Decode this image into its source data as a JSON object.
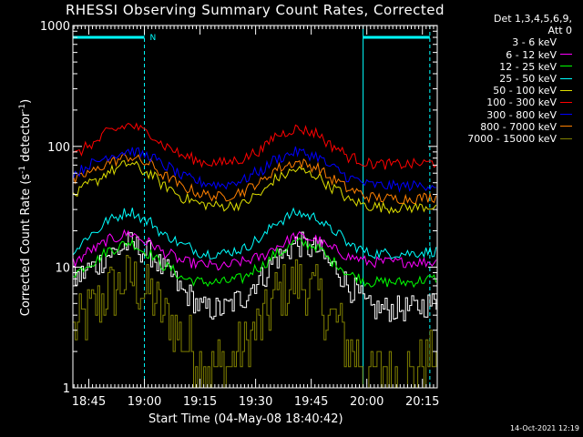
{
  "title": "RHESSI Observing Summary Count Rates, Corrected",
  "timestamp": "14-Oct-2021 12:19",
  "legend_header": [
    "Det 1,3,4,5,6,9,",
    "Att 0"
  ],
  "chart_data": {
    "type": "line",
    "title": "RHESSI Observing Summary Count Rates, Corrected",
    "xlabel": "Start Time (04-May-08 18:40:42)",
    "ylabel": "Corrected Count Rate (s⁻¹ detector⁻¹)",
    "ylabel_parts": [
      "Corrected Count Rate (s",
      "-1",
      " detector",
      "-1",
      ")"
    ],
    "yscale": "log",
    "ylim": [
      1,
      1000
    ],
    "ytick_labels": [
      "1",
      "10",
      "100",
      "1000"
    ],
    "xlim": [
      "18:40:42",
      "20:19:00"
    ],
    "xtick_labels": [
      "18:45",
      "19:00",
      "19:15",
      "19:30",
      "19:45",
      "20:00",
      "20:15"
    ],
    "x_minutes_from_start": [
      4.3,
      19.3,
      34.3,
      49.3,
      64.3,
      79.3,
      94.3
    ],
    "annotations": [
      {
        "text": "N",
        "color": "#00ffff",
        "x": "19:00"
      }
    ],
    "attenuator_bars": [
      {
        "start": "18:40:42",
        "end": "19:00:00",
        "level": 800,
        "color": "#00ffff"
      },
      {
        "start": "19:59:00",
        "end": "20:17:00",
        "level": 800,
        "color": "#00ffff"
      }
    ],
    "markers_solid": [
      "18:40:42",
      "19:59:00"
    ],
    "markers_dashed": [
      "19:00:00",
      "20:17:00"
    ],
    "series_x": [
      "18:41",
      "18:46",
      "18:51",
      "18:56",
      "19:01",
      "19:06",
      "19:11",
      "19:16",
      "19:21",
      "19:26",
      "19:31",
      "19:36",
      "19:41",
      "19:46",
      "19:51",
      "19:56",
      "20:01",
      "20:06",
      "20:11",
      "20:18"
    ],
    "series": [
      {
        "name": "3 - 6 keV",
        "color": "#ffffff",
        "legend_color": "#000000",
        "values": [
          8,
          10,
          13,
          15.5,
          13,
          9,
          6,
          4.5,
          4.5,
          5.5,
          8,
          12,
          15.5,
          14,
          10,
          6.5,
          4.5,
          4.5,
          4.5,
          5
        ]
      },
      {
        "name": "6 - 12 keV",
        "color": "#ff00ff",
        "values": [
          11,
          14,
          17,
          19,
          16,
          13,
          11,
          10.5,
          10,
          11,
          12,
          15,
          18,
          17,
          14,
          12,
          11,
          11,
          11,
          11
        ]
      },
      {
        "name": "12 - 25 keV",
        "color": "#00ff00",
        "values": [
          9,
          11,
          14,
          16,
          13,
          10,
          8,
          7.5,
          7.5,
          8,
          10,
          13,
          16,
          15,
          11,
          8.5,
          7.5,
          7.5,
          7.5,
          8
        ]
      },
      {
        "name": "25 - 50 keV",
        "color": "#00ffff",
        "values": [
          14,
          19,
          25,
          29,
          24,
          18,
          15,
          13,
          13,
          14,
          17,
          24,
          28,
          26,
          20,
          15,
          13,
          13,
          13,
          13.5
        ]
      },
      {
        "name": "50 - 100 keV",
        "color": "#e0e000",
        "values": [
          40,
          50,
          63,
          72,
          60,
          46,
          37,
          33,
          32,
          33,
          40,
          55,
          64,
          58,
          45,
          35,
          32,
          31,
          31,
          32
        ]
      },
      {
        "name": "100 - 300 keV",
        "color": "#ff0000",
        "values": [
          85,
          105,
          135,
          150,
          130,
          100,
          82,
          74,
          73,
          78,
          92,
          125,
          140,
          130,
          100,
          80,
          72,
          71,
          71,
          73
        ]
      },
      {
        "name": "300 - 800 keV",
        "color": "#0000ff",
        "values": [
          60,
          72,
          85,
          92,
          84,
          68,
          55,
          50,
          48,
          52,
          62,
          80,
          90,
          84,
          66,
          54,
          48,
          47,
          47,
          48
        ]
      },
      {
        "name": "800 - 7000 keV",
        "color": "#ff8000",
        "values": [
          52,
          62,
          75,
          82,
          72,
          56,
          45,
          40,
          38,
          42,
          50,
          66,
          74,
          68,
          53,
          43,
          38,
          37,
          37,
          38
        ]
      },
      {
        "name": "7000 - 15000 keV",
        "color": "#808000",
        "values": [
          3,
          4.5,
          6.5,
          8,
          6,
          3.8,
          2.5,
          1.6,
          1.5,
          2,
          3.3,
          6,
          7.5,
          6,
          3.5,
          2,
          1.3,
          1.3,
          1.3,
          1.8
        ]
      }
    ]
  }
}
